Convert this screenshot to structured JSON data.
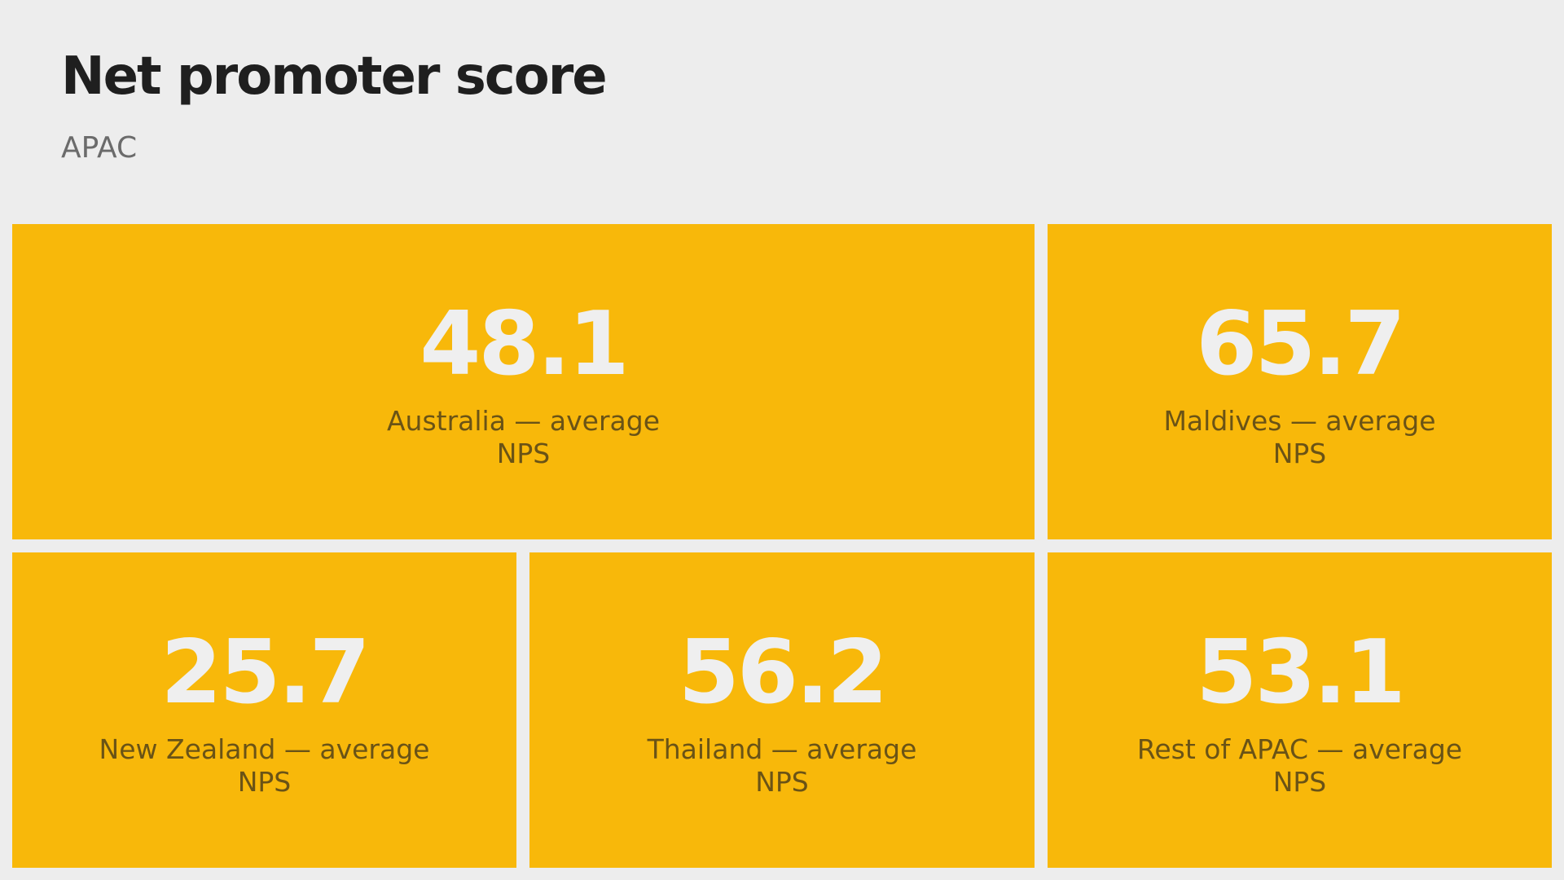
{
  "title": "Net promoter score",
  "subtitle": "APAC",
  "tile_color": "#f8b80a",
  "chart_data": {
    "type": "treemap",
    "title": "Net promoter score",
    "subtitle": "APAC",
    "metric": "NPS",
    "tiles": [
      {
        "category": "Australia",
        "value": 48.1,
        "value_text": "48.1",
        "label_line1": "Australia — average",
        "label_line2": "NPS"
      },
      {
        "category": "Maldives",
        "value": 65.7,
        "value_text": "65.7",
        "label_line1": "Maldives — average",
        "label_line2": "NPS"
      },
      {
        "category": "New Zealand",
        "value": 25.7,
        "value_text": "25.7",
        "label_line1": "New Zealand — average",
        "label_line2": "NPS"
      },
      {
        "category": "Thailand",
        "value": 56.2,
        "value_text": "56.2",
        "label_line1": "Thailand — average",
        "label_line2": "NPS"
      },
      {
        "category": "Rest of APAC",
        "value": 53.1,
        "value_text": "53.1",
        "label_line1": "Rest of APAC — average",
        "label_line2": "NPS"
      }
    ]
  }
}
